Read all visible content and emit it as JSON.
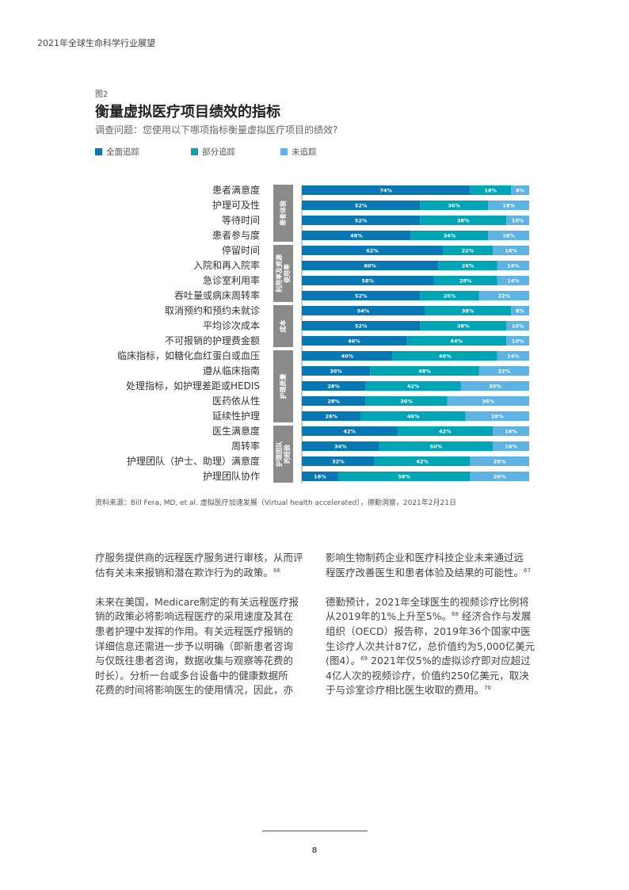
{
  "running_head": "2021年全球生命科学行业展望",
  "figure": {
    "number": "图2",
    "title": "衡量虚拟医疗项目绩效的指标",
    "subtitle": "调查问题：您使用以下哪项指标衡量虚拟医疗项目的绩效?",
    "source": "资料来源：Bill Fera, MD, et al. 虚拟医疗加速发展（Virtual health accelerated），德勤洞察，2021年2月21日"
  },
  "chart_data": {
    "type": "bar",
    "orientation": "horizontal",
    "stacked": true,
    "unit": "%",
    "xlim": [
      0,
      100
    ],
    "legend_position": "top",
    "series": [
      {
        "name": "全面追踪",
        "color": "#0878b4",
        "values": [
          74,
          52,
          52,
          48,
          62,
          60,
          58,
          52,
          54,
          52,
          46,
          40,
          30,
          28,
          28,
          26,
          42,
          34,
          32,
          16
        ]
      },
      {
        "name": "部分追踪",
        "color": "#00a5b5",
        "values": [
          18,
          30,
          38,
          34,
          22,
          26,
          28,
          26,
          38,
          38,
          44,
          46,
          48,
          42,
          36,
          46,
          42,
          50,
          42,
          58
        ]
      },
      {
        "name": "未追踪",
        "color": "#5db3e3",
        "values": [
          8,
          18,
          10,
          18,
          16,
          14,
          14,
          22,
          8,
          10,
          10,
          14,
          22,
          30,
          36,
          28,
          16,
          16,
          26,
          26
        ]
      }
    ],
    "categories": [
      "患者满意度",
      "护理可及性",
      "等待时间",
      "患者参与度",
      "停留时间",
      "入院和再入院率",
      "急诊室利用率",
      "吞吐量或病床周转率",
      "取消预约和预约未就诊",
      "平均诊次成本",
      "不可报销的护理费金额",
      "临床指标，如糖化血红蛋白或血压",
      "遵从临床指南",
      "处理指标，如护理差距或HEDIS",
      "医药依从性",
      "延续性护理",
      "医生满意度",
      "周转率",
      "护理团队（护士、助理）满意度",
      "护理团队协作"
    ],
    "groups": [
      {
        "label": [
          "患者体验"
        ],
        "rows": [
          0,
          3
        ]
      },
      {
        "label": [
          "利用率及资源",
          "使用率"
        ],
        "rows": [
          4,
          7
        ]
      },
      {
        "label": [
          "成本"
        ],
        "rows": [
          8,
          10
        ]
      },
      {
        "label": [
          "护理质量"
        ],
        "rows": [
          11,
          15
        ]
      },
      {
        "label": [
          "护理团队",
          "的经验"
        ],
        "rows": [
          16,
          19
        ]
      }
    ],
    "group_color": "#8a8a8a"
  },
  "body": {
    "left": [
      [
        [
          {
            "t": "疗服务提供商的远程医疗服务进行审核，从而评"
          }
        ],
        [
          {
            "t": "估有关未来报销和潜在欺诈行为的政策。"
          },
          {
            "sup": "66"
          }
        ]
      ],
      [
        [
          {
            "t": "未来在美国，Medicare制定的有关远程医疗报"
          }
        ],
        [
          {
            "t": "销的政策必将影响远程医疗的采用速度及其在"
          }
        ],
        [
          {
            "t": "患者护理中发挥的作用。有关远程医疗报销的"
          }
        ],
        [
          {
            "t": "详细信息还需进一步予以明确（即新患者咨询"
          }
        ],
        [
          {
            "t": "与仅既往患者咨询，数据收集与观察等花费的"
          }
        ],
        [
          {
            "t": "时长）。分析一台或多台设备中的健康数据所"
          }
        ],
        [
          {
            "t": "花费的时间将影响医生的使用情况，因此，亦"
          }
        ]
      ]
    ],
    "right": [
      [
        [
          {
            "t": "影响生物制药企业和医疗科技企业未来通过远"
          }
        ],
        [
          {
            "t": "程医疗改善医生和患者体验及结果的可能性。"
          },
          {
            "sup": "67"
          }
        ]
      ],
      [
        [
          {
            "t": "德勤预计，2021年全球医生的视频诊疗比例将"
          }
        ],
        [
          {
            "t": "从2019年的1%上升至5%。"
          },
          {
            "sup": "68"
          },
          {
            "t": " 经济合作与发展"
          }
        ],
        [
          {
            "t": "组织（OECD）报告称，2019年36个国家中医"
          }
        ],
        [
          {
            "t": "生诊疗人次共计87亿，总价值约为5,000亿美元"
          }
        ],
        [
          {
            "t": "(图4）。"
          },
          {
            "sup": "69"
          },
          {
            "t": " 2021年仅5%的虚拟诊疗即对应超过"
          }
        ],
        [
          {
            "t": "4亿人次的视频诊疗，价值约250亿美元，取决"
          }
        ],
        [
          {
            "t": "于与诊室诊疗相比医生收取的费用。"
          },
          {
            "sup": "70"
          }
        ]
      ]
    ]
  },
  "page_number": "8"
}
